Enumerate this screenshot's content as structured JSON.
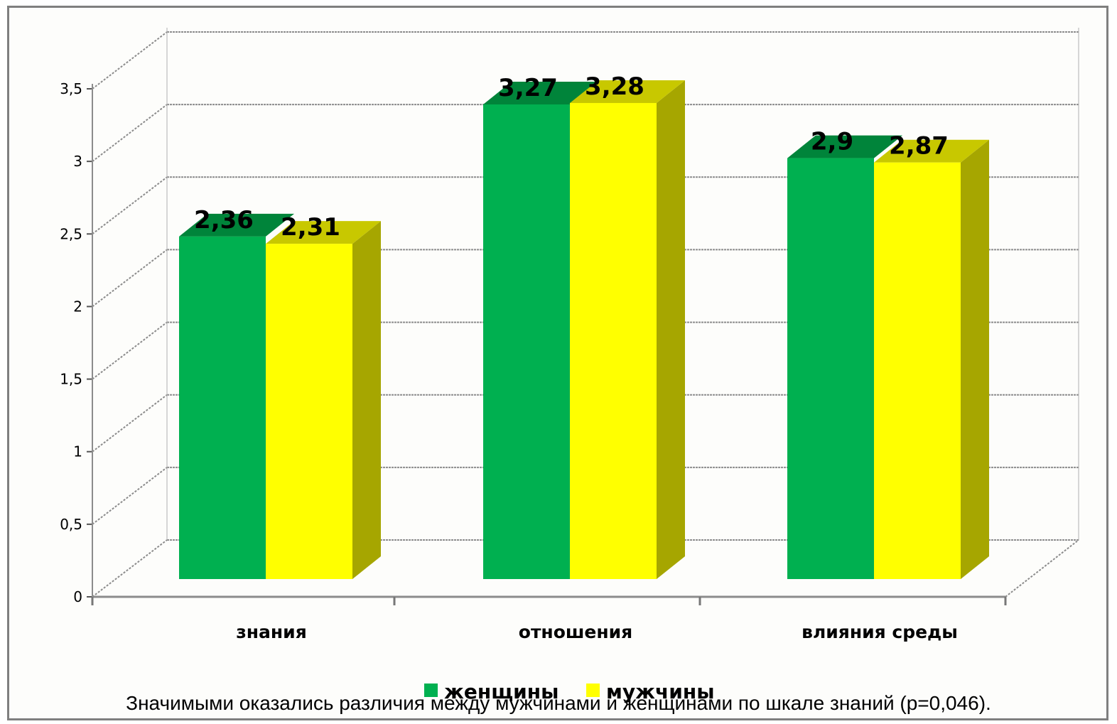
{
  "chart_data": {
    "type": "bar",
    "three_d": true,
    "categories": [
      "знания",
      "отношения",
      "влияния среды"
    ],
    "series": [
      {
        "name": "женщины",
        "values": [
          2.36,
          3.27,
          2.9
        ],
        "labels": [
          "2,36",
          "3,27",
          "2,9"
        ]
      },
      {
        "name": "мужчины",
        "values": [
          2.31,
          3.28,
          2.87
        ],
        "labels": [
          "2,31",
          "3,28",
          "2,87"
        ]
      }
    ],
    "y_ticks": [
      {
        "value": 0,
        "label": "0"
      },
      {
        "value": 0.5,
        "label": "0,5"
      },
      {
        "value": 1,
        "label": "1"
      },
      {
        "value": 1.5,
        "label": "1,5"
      },
      {
        "value": 2,
        "label": "2"
      },
      {
        "value": 2.5,
        "label": "2,5"
      },
      {
        "value": 3,
        "label": "3"
      },
      {
        "value": 3.5,
        "label": "3,5"
      }
    ],
    "ylim": [
      0,
      3.5
    ],
    "grid": true,
    "legend_position": "bottom",
    "colors": {
      "женщины": {
        "front": "#00b050",
        "top": "#00843a",
        "side": "#007a35"
      },
      "мужчины": {
        "front": "#ffff00",
        "top": "#c8c800",
        "side": "#a6a600"
      }
    }
  },
  "caption": "Значимыми оказались различия между мужчинами и женщинами по шкале знаний (р=0,046)."
}
